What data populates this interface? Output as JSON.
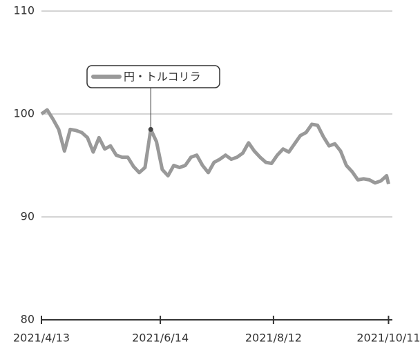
{
  "chart_data": {
    "type": "line",
    "x": [
      "2021-04-13",
      "2021-04-16",
      "2021-04-19",
      "2021-04-22",
      "2021-04-25",
      "2021-04-28",
      "2021-05-01",
      "2021-05-04",
      "2021-05-07",
      "2021-05-10",
      "2021-05-13",
      "2021-05-16",
      "2021-05-19",
      "2021-05-22",
      "2021-05-25",
      "2021-05-28",
      "2021-05-31",
      "2021-06-03",
      "2021-06-06",
      "2021-06-09",
      "2021-06-12",
      "2021-06-15",
      "2021-06-18",
      "2021-06-21",
      "2021-06-24",
      "2021-06-27",
      "2021-06-30",
      "2021-07-03",
      "2021-07-06",
      "2021-07-09",
      "2021-07-12",
      "2021-07-15",
      "2021-07-18",
      "2021-07-21",
      "2021-07-24",
      "2021-07-27",
      "2021-07-30",
      "2021-08-02",
      "2021-08-05",
      "2021-08-08",
      "2021-08-11",
      "2021-08-14",
      "2021-08-17",
      "2021-08-20",
      "2021-08-23",
      "2021-08-26",
      "2021-08-29",
      "2021-09-01",
      "2021-09-04",
      "2021-09-07",
      "2021-09-10",
      "2021-09-13",
      "2021-09-16",
      "2021-09-19",
      "2021-09-22",
      "2021-09-25",
      "2021-09-28",
      "2021-10-01",
      "2021-10-04",
      "2021-10-07",
      "2021-10-10",
      "2021-10-11"
    ],
    "series": [
      {
        "name": "円・トルコリラ",
        "color": "#999999",
        "values": [
          100.0,
          100.4,
          99.5,
          98.5,
          96.4,
          98.5,
          98.4,
          98.2,
          97.7,
          96.3,
          97.7,
          96.6,
          96.9,
          96.0,
          95.8,
          95.8,
          94.9,
          94.3,
          94.8,
          98.5,
          97.3,
          94.6,
          94.0,
          95.0,
          94.8,
          95.0,
          95.8,
          96.0,
          95.0,
          94.3,
          95.3,
          95.6,
          96.0,
          95.6,
          95.8,
          96.2,
          97.2,
          96.4,
          95.8,
          95.3,
          95.2,
          96.0,
          96.6,
          96.3,
          97.1,
          97.9,
          98.2,
          99.0,
          98.9,
          97.8,
          96.9,
          97.1,
          96.4,
          95.0,
          94.4,
          93.6,
          93.7,
          93.6,
          93.3,
          93.5,
          94.0,
          93.2
        ]
      }
    ],
    "highlight_index": 19,
    "xlim": [
      "2021-04-13",
      "2021-10-13"
    ],
    "xticks": [
      {
        "value": "2021-04-13",
        "label": "2021/4/13"
      },
      {
        "value": "2021-06-14",
        "label": "2021/6/14"
      },
      {
        "value": "2021-08-12",
        "label": "2021/8/12"
      },
      {
        "value": "2021-10-11",
        "label": "2021/10/11"
      }
    ],
    "ylim": [
      80,
      110
    ],
    "yticks": [
      80,
      90,
      100,
      110
    ],
    "grid": true
  }
}
